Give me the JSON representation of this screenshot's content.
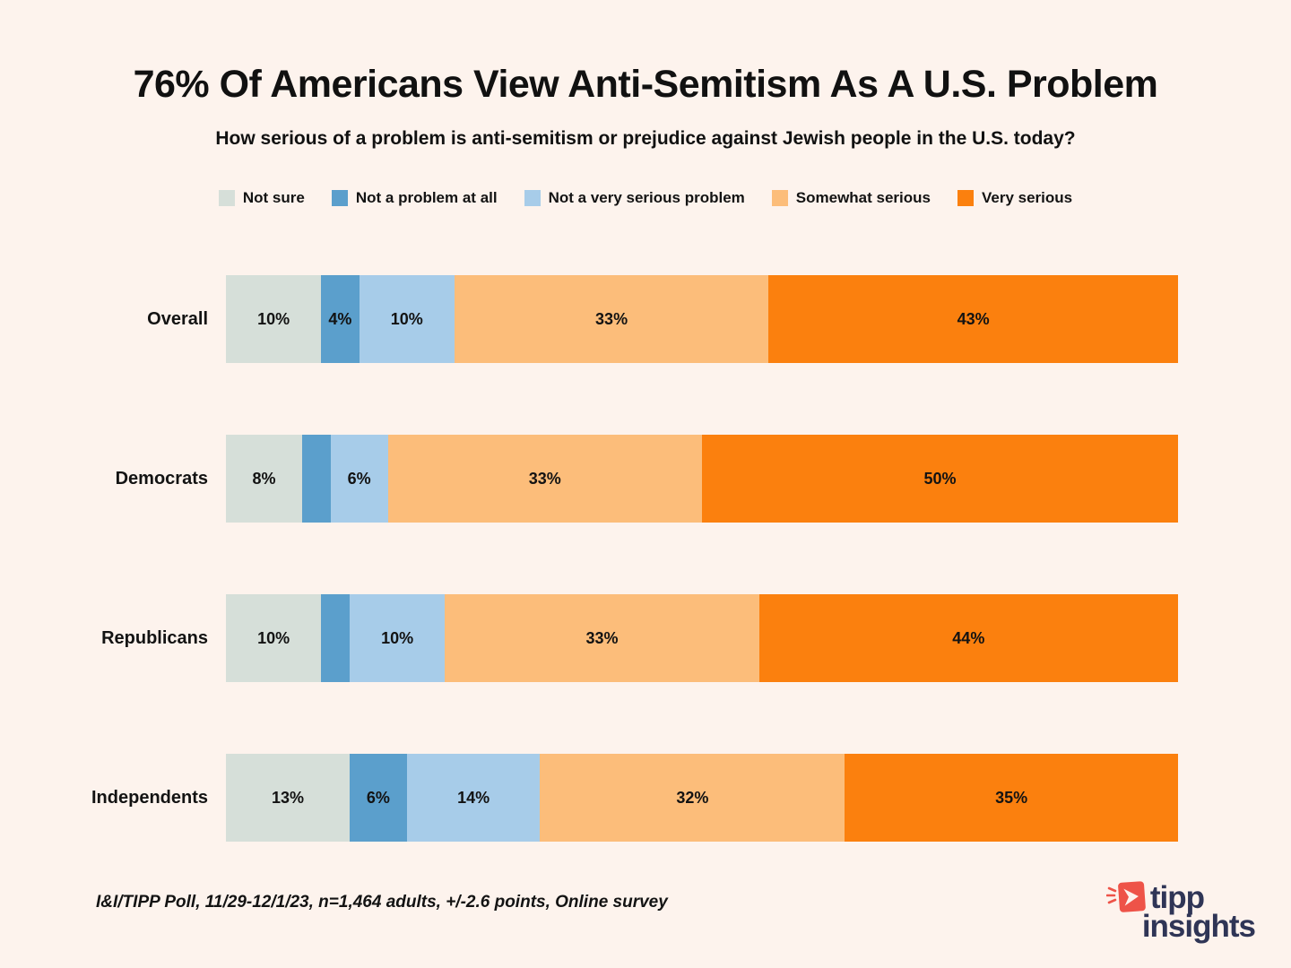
{
  "chart_data": {
    "type": "bar",
    "stacked": true,
    "orientation": "horizontal",
    "title": "76% Of Americans View Anti-Semitism As A U.S. Problem",
    "subtitle": "How serious of a problem is anti-semitism or prejudice against Jewish people in the U.S. today?",
    "source_note": "I&I/TIPP Poll, 11/29-12/1/23, n=1,464 adults, +/-2.6 points, Online survey",
    "categories": [
      "Overall",
      "Democrats",
      "Republicans",
      "Independents"
    ],
    "series": [
      {
        "name": "Not sure",
        "color": "#d6dfd9",
        "values": [
          10,
          8,
          10,
          13
        ]
      },
      {
        "name": "Not a problem at all",
        "color": "#5b9fcc",
        "values": [
          4,
          3,
          3,
          6
        ]
      },
      {
        "name": "Not a very serious problem",
        "color": "#a7cce9",
        "values": [
          10,
          6,
          10,
          14
        ]
      },
      {
        "name": "Somewhat serious",
        "color": "#fcbd7a",
        "values": [
          33,
          33,
          33,
          32
        ]
      },
      {
        "name": "Very serious",
        "color": "#fb800e",
        "values": [
          43,
          50,
          44,
          35
        ]
      }
    ],
    "value_suffix": "%",
    "min_label_value": 4,
    "xlim": [
      0,
      100
    ],
    "legend_position": "top",
    "grid": false,
    "colors": {
      "background": "#fdf3ed",
      "text": "#131313"
    }
  },
  "logo": {
    "word1": "tipp",
    "word2": "insights",
    "text_color": "#2f3556",
    "accent_color": "#ee5348",
    "icon": "tipp-insights-bird-icon"
  }
}
